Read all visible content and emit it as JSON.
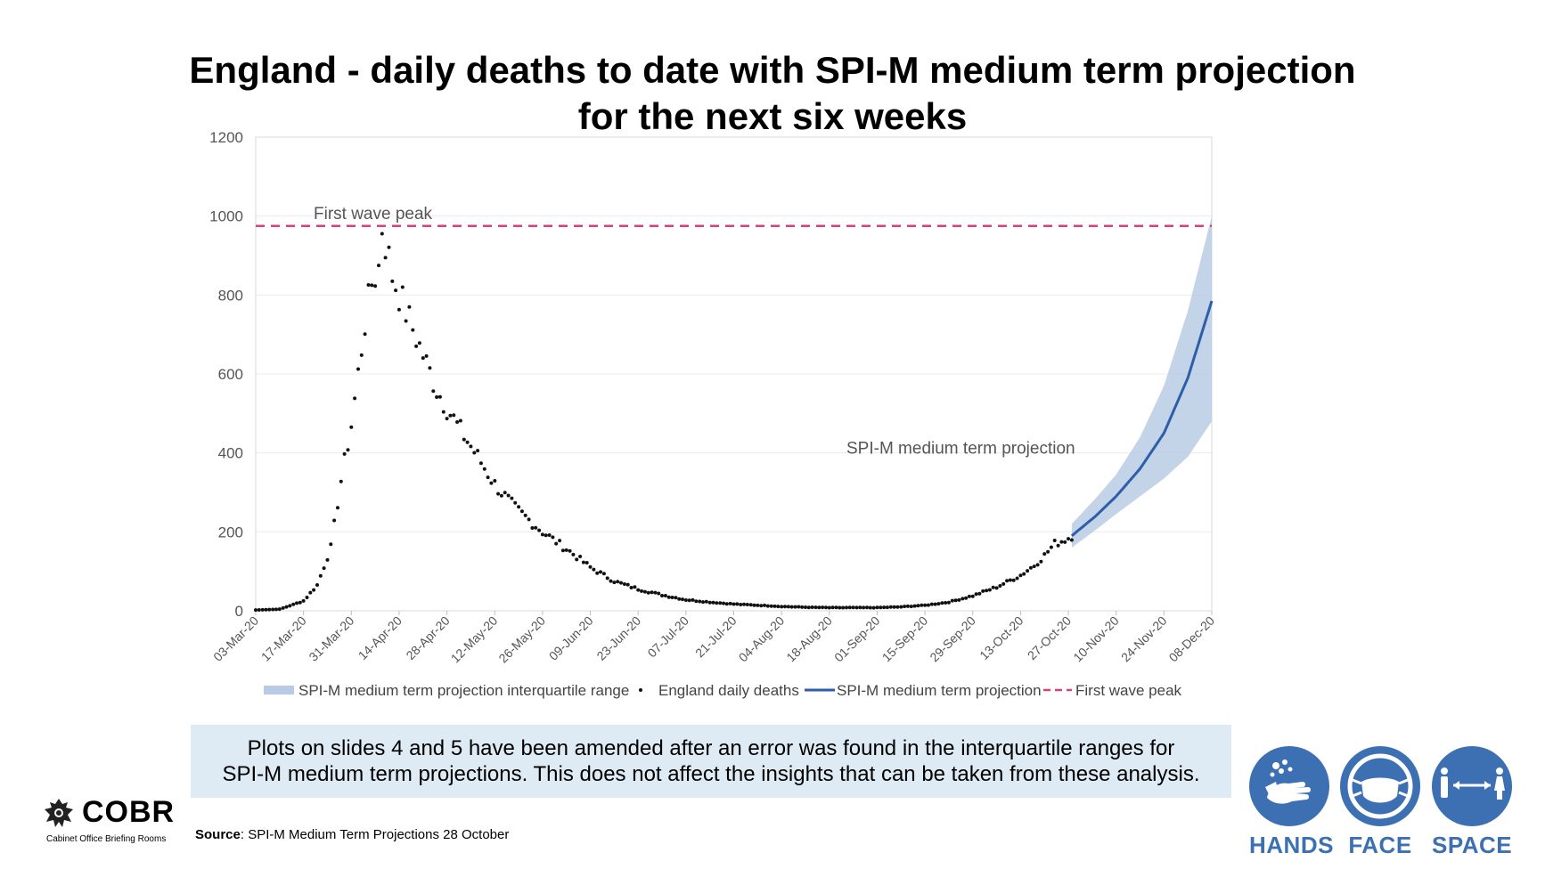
{
  "slide": {
    "title_line1": "England - daily deaths to date with SPI-M medium term projection",
    "title_line2": "for the next six weeks",
    "notice_line1": "Plots on slides 4 and 5 have been amended after an error was found in the interquartile ranges for",
    "notice_line2": "SPI-M medium term projections. This does not affect the insights that can be taken from these analysis.",
    "source_label": "Source",
    "source_text": ": SPI-M Medium Term Projections 28 October",
    "logo": {
      "word": "COBR",
      "subtitle": "Cabinet Office Briefing Rooms"
    },
    "badges": [
      {
        "label": "HANDS",
        "icon": "hands-washing-icon"
      },
      {
        "label": "FACE",
        "icon": "face-mask-icon"
      },
      {
        "label": "SPACE",
        "icon": "social-distance-icon"
      }
    ],
    "colors": {
      "accent_blue": "#3c70b3",
      "projection": "#2e5ea8",
      "band": "#b9cbe4",
      "peak": "#d6407d",
      "notice_bg": "#deebf4"
    }
  },
  "chart_data": {
    "type": "scatter",
    "x_axis": {
      "type": "date",
      "start": "2020-03-03",
      "end": "2020-12-08",
      "tick_labels": [
        "03-Mar-20",
        "17-Mar-20",
        "31-Mar-20",
        "14-Apr-20",
        "28-Apr-20",
        "12-May-20",
        "26-May-20",
        "09-Jun-20",
        "23-Jun-20",
        "07-Jul-20",
        "21-Jul-20",
        "04-Aug-20",
        "18-Aug-20",
        "01-Sep-20",
        "15-Sep-20",
        "29-Sep-20",
        "13-Oct-20",
        "27-Oct-20",
        "10-Nov-20",
        "24-Nov-20",
        "08-Dec-20"
      ]
    },
    "y_axis": {
      "min": 0,
      "max": 1200,
      "ticks": [
        0,
        200,
        400,
        600,
        800,
        1000,
        1200
      ]
    },
    "grid": "horizontal",
    "legend_position": "bottom",
    "legend": [
      "SPI-M medium term projection interquartile range",
      "England daily deaths",
      "SPI-M medium term projection",
      "First wave peak"
    ],
    "annotations": {
      "peak_label": "First wave peak",
      "projection_label": "SPI-M medium term projection"
    },
    "first_wave_peak": 975,
    "daily_deaths": {
      "key_points": [
        [
          "2020-03-03",
          2
        ],
        [
          "2020-03-10",
          4
        ],
        [
          "2020-03-17",
          25
        ],
        [
          "2020-03-21",
          65
        ],
        [
          "2020-03-25",
          160
        ],
        [
          "2020-03-28",
          330
        ],
        [
          "2020-03-31",
          470
        ],
        [
          "2020-04-02",
          600
        ],
        [
          "2020-04-04",
          730
        ],
        [
          "2020-04-06",
          830
        ],
        [
          "2020-04-08",
          870
        ],
        [
          "2020-04-09",
          975
        ],
        [
          "2020-04-12",
          850
        ],
        [
          "2020-04-15",
          780
        ],
        [
          "2020-04-20",
          670
        ],
        [
          "2020-04-25",
          560
        ],
        [
          "2020-05-01",
          470
        ],
        [
          "2020-05-07",
          390
        ],
        [
          "2020-05-12",
          320
        ],
        [
          "2020-05-18",
          260
        ],
        [
          "2020-05-26",
          200
        ],
        [
          "2020-06-03",
          150
        ],
        [
          "2020-06-09",
          110
        ],
        [
          "2020-06-16",
          75
        ],
        [
          "2020-06-23",
          55
        ],
        [
          "2020-06-30",
          40
        ],
        [
          "2020-07-07",
          28
        ],
        [
          "2020-07-14",
          22
        ],
        [
          "2020-07-21",
          17
        ],
        [
          "2020-07-28",
          14
        ],
        [
          "2020-08-04",
          11
        ],
        [
          "2020-08-11",
          9
        ],
        [
          "2020-08-18",
          8
        ],
        [
          "2020-08-25",
          8
        ],
        [
          "2020-09-01",
          8
        ],
        [
          "2020-09-08",
          10
        ],
        [
          "2020-09-15",
          14
        ],
        [
          "2020-09-22",
          22
        ],
        [
          "2020-09-29",
          38
        ],
        [
          "2020-10-06",
          60
        ],
        [
          "2020-10-13",
          90
        ],
        [
          "2020-10-17",
          115
        ],
        [
          "2020-10-20",
          140
        ],
        [
          "2020-10-23",
          170
        ],
        [
          "2020-10-26",
          180
        ],
        [
          "2020-10-28",
          190
        ]
      ]
    },
    "projection": {
      "key_points": [
        [
          "2020-10-28",
          190
        ],
        [
          "2020-11-04",
          240
        ],
        [
          "2020-11-10",
          290
        ],
        [
          "2020-11-17",
          360
        ],
        [
          "2020-11-24",
          450
        ],
        [
          "2020-12-01",
          590
        ],
        [
          "2020-12-08",
          785
        ]
      ],
      "interquartile_low": [
        [
          "2020-10-28",
          160
        ],
        [
          "2020-11-04",
          205
        ],
        [
          "2020-11-10",
          245
        ],
        [
          "2020-11-17",
          290
        ],
        [
          "2020-11-24",
          335
        ],
        [
          "2020-12-01",
          390
        ],
        [
          "2020-12-08",
          480
        ]
      ],
      "interquartile_high": [
        [
          "2020-10-28",
          220
        ],
        [
          "2020-11-04",
          285
        ],
        [
          "2020-11-10",
          345
        ],
        [
          "2020-11-17",
          440
        ],
        [
          "2020-11-24",
          570
        ],
        [
          "2020-12-01",
          760
        ],
        [
          "2020-12-08",
          1000
        ]
      ]
    }
  }
}
